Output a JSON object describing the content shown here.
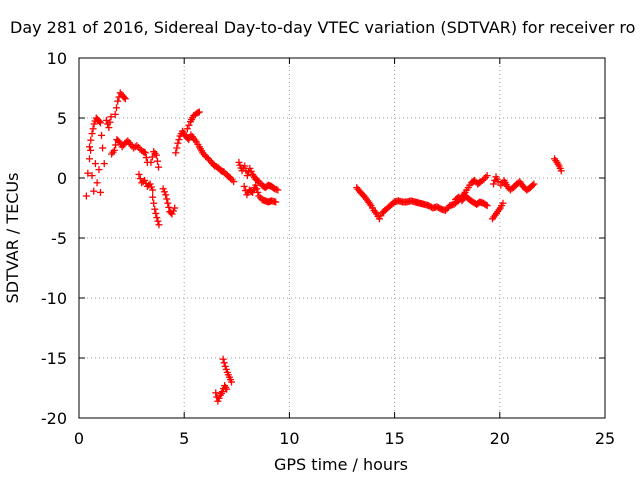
{
  "chart_data": {
    "type": "scatter",
    "title": "Day 281 of 2016, Sidereal Day-to-day VTEC variation (SDTVAR) for receiver ro",
    "xlabel": "GPS time / hours",
    "ylabel": "SDTVAR / TECUs",
    "xlim": [
      0,
      25
    ],
    "ylim": [
      -20,
      10
    ],
    "xticks": [
      0,
      5,
      10,
      15,
      20,
      25
    ],
    "yticks": [
      10,
      5,
      0,
      -5,
      -10,
      -15,
      -20
    ],
    "grid": true,
    "marker": "+",
    "color": "#ff0000",
    "series": [
      {
        "name": "SDTVAR",
        "segments": [
          [
            [
              0.35,
              -1.5
            ],
            [
              0.42,
              0.4
            ],
            [
              0.5,
              1.6
            ],
            [
              0.55,
              2.3
            ],
            [
              0.62,
              0.2
            ],
            [
              0.7,
              -1.1
            ],
            [
              0.78,
              1.2
            ],
            [
              0.86,
              -0.4
            ],
            [
              0.95,
              0.7
            ],
            [
              1.02,
              -1.2
            ]
          ],
          [
            [
              0.5,
              2.6
            ],
            [
              0.62,
              3.7
            ],
            [
              0.72,
              4.5
            ],
            [
              0.82,
              5.0
            ],
            [
              0.92,
              4.8
            ],
            [
              1.02,
              4.6
            ],
            [
              1.12,
              2.5
            ],
            [
              1.2,
              1.2
            ]
          ],
          [
            [
              1.3,
              4.8
            ],
            [
              1.42,
              4.2
            ],
            [
              1.52,
              5.1
            ]
          ],
          [
            [
              1.55,
              2.0
            ],
            [
              1.68,
              2.3
            ],
            [
              1.8,
              3.2
            ],
            [
              1.92,
              3.0
            ],
            [
              2.05,
              2.6
            ],
            [
              2.18,
              2.9
            ],
            [
              2.32,
              3.1
            ],
            [
              2.45,
              2.8
            ],
            [
              2.6,
              2.5
            ],
            [
              2.75,
              2.7
            ],
            [
              2.9,
              2.4
            ],
            [
              3.05,
              2.2
            ],
            [
              3.15,
              2.1
            ],
            [
              3.25,
              1.3
            ]
          ],
          [
            [
              1.72,
              5.3
            ],
            [
              1.84,
              6.4
            ],
            [
              1.96,
              7.1
            ],
            [
              2.1,
              6.8
            ],
            [
              2.2,
              6.6
            ]
          ],
          [
            [
              2.85,
              0.3
            ],
            [
              2.98,
              -0.4
            ],
            [
              3.12,
              -0.2
            ],
            [
              3.25,
              -0.7
            ],
            [
              3.38,
              -0.5
            ],
            [
              3.5,
              -1.0
            ]
          ],
          [
            [
              3.42,
              1.3
            ],
            [
              3.55,
              2.2
            ],
            [
              3.68,
              1.9
            ],
            [
              3.78,
              0.9
            ]
          ],
          [
            [
              3.5,
              -1.6
            ],
            [
              3.6,
              -2.6
            ],
            [
              3.7,
              -3.3
            ],
            [
              3.8,
              -3.9
            ]
          ],
          [
            [
              4.0,
              -0.9
            ],
            [
              4.12,
              -1.4
            ],
            [
              4.22,
              -2.1
            ],
            [
              4.32,
              -2.8
            ],
            [
              4.42,
              -3.0
            ],
            [
              4.55,
              -2.5
            ]
          ],
          [
            [
              4.6,
              2.1
            ],
            [
              4.7,
              2.9
            ],
            [
              4.8,
              3.5
            ],
            [
              4.92,
              3.9
            ],
            [
              5.02,
              3.6
            ],
            [
              5.12,
              3.4
            ],
            [
              5.22,
              3.2
            ],
            [
              5.32,
              3.6
            ],
            [
              5.45,
              3.3
            ],
            [
              5.58,
              3.0
            ],
            [
              5.72,
              2.6
            ],
            [
              5.88,
              2.1
            ],
            [
              6.02,
              1.8
            ],
            [
              6.15,
              1.6
            ],
            [
              6.3,
              1.3
            ],
            [
              6.45,
              1.0
            ],
            [
              6.6,
              0.9
            ],
            [
              6.75,
              0.6
            ],
            [
              6.9,
              0.5
            ],
            [
              7.05,
              0.2
            ],
            [
              7.2,
              0.0
            ],
            [
              7.35,
              -0.3
            ]
          ],
          [
            [
              5.15,
              4.1
            ],
            [
              5.3,
              4.7
            ],
            [
              5.45,
              5.2
            ],
            [
              5.6,
              5.4
            ],
            [
              5.72,
              5.5
            ]
          ],
          [
            [
              6.5,
              -17.9
            ],
            [
              6.6,
              -18.6
            ],
            [
              6.72,
              -18.1
            ],
            [
              6.82,
              -17.8
            ],
            [
              6.92,
              -17.3
            ],
            [
              7.02,
              -17.6
            ]
          ],
          [
            [
              6.85,
              -15.1
            ],
            [
              6.95,
              -15.7
            ],
            [
              7.05,
              -16.2
            ],
            [
              7.15,
              -16.6
            ],
            [
              7.25,
              -17.0
            ]
          ],
          [
            [
              7.6,
              1.3
            ],
            [
              7.75,
              0.6
            ],
            [
              7.88,
              1.0
            ],
            [
              8.0,
              0.2
            ],
            [
              8.12,
              0.8
            ],
            [
              8.25,
              0.3
            ],
            [
              8.4,
              -0.1
            ],
            [
              8.55,
              -0.3
            ],
            [
              8.7,
              -0.6
            ],
            [
              8.85,
              -0.8
            ],
            [
              9.0,
              -0.6
            ],
            [
              9.15,
              -0.7
            ],
            [
              9.3,
              -0.9
            ],
            [
              9.45,
              -1.0
            ]
          ],
          [
            [
              7.85,
              -0.7
            ],
            [
              7.98,
              -1.4
            ],
            [
              8.1,
              -1.0
            ],
            [
              8.25,
              -1.2
            ],
            [
              8.4,
              -0.6
            ],
            [
              8.55,
              -1.5
            ],
            [
              8.7,
              -1.8
            ],
            [
              8.85,
              -1.9
            ],
            [
              9.0,
              -2.0
            ],
            [
              9.15,
              -1.9
            ],
            [
              9.35,
              -2.0
            ]
          ],
          [
            [
              13.2,
              -0.8
            ],
            [
              13.38,
              -1.2
            ],
            [
              13.55,
              -1.5
            ],
            [
              13.72,
              -1.9
            ],
            [
              13.88,
              -2.3
            ],
            [
              14.02,
              -2.7
            ],
            [
              14.15,
              -3.0
            ],
            [
              14.28,
              -3.4
            ],
            [
              14.42,
              -2.9
            ],
            [
              14.6,
              -2.6
            ],
            [
              14.8,
              -2.3
            ],
            [
              14.98,
              -2.0
            ],
            [
              15.18,
              -1.9
            ],
            [
              15.38,
              -2.0
            ],
            [
              15.58,
              -2.0
            ],
            [
              15.78,
              -1.9
            ],
            [
              15.98,
              -2.0
            ],
            [
              16.2,
              -2.1
            ],
            [
              16.42,
              -2.2
            ],
            [
              16.62,
              -2.3
            ],
            [
              16.82,
              -2.5
            ],
            [
              17.02,
              -2.4
            ],
            [
              17.22,
              -2.6
            ],
            [
              17.42,
              -2.7
            ],
            [
              17.62,
              -2.3
            ],
            [
              17.82,
              -2.2
            ],
            [
              18.02,
              -1.9
            ],
            [
              18.2,
              -1.6
            ],
            [
              18.35,
              -1.2
            ],
            [
              18.5,
              -0.8
            ],
            [
              18.65,
              -0.4
            ],
            [
              18.8,
              -0.2
            ],
            [
              18.95,
              -0.5
            ],
            [
              19.1,
              -0.3
            ],
            [
              19.25,
              -0.1
            ],
            [
              19.4,
              0.2
            ]
          ],
          [
            [
              17.9,
              -1.8
            ],
            [
              18.05,
              -1.6
            ],
            [
              18.2,
              -1.9
            ],
            [
              18.38,
              -1.5
            ],
            [
              18.55,
              -1.8
            ],
            [
              18.72,
              -2.0
            ],
            [
              18.9,
              -2.2
            ],
            [
              19.05,
              -2.0
            ],
            [
              19.22,
              -2.1
            ],
            [
              19.4,
              -2.3
            ]
          ],
          [
            [
              19.65,
              -3.4
            ],
            [
              19.78,
              -3.1
            ],
            [
              19.9,
              -2.8
            ],
            [
              20.02,
              -2.5
            ],
            [
              20.15,
              -2.1
            ]
          ],
          [
            [
              20.05,
              -0.6
            ],
            [
              20.2,
              -0.2
            ],
            [
              20.35,
              -0.7
            ],
            [
              20.5,
              -1.0
            ],
            [
              20.65,
              -0.8
            ],
            [
              20.8,
              -0.5
            ],
            [
              20.95,
              -0.3
            ],
            [
              21.1,
              -0.7
            ],
            [
              21.28,
              -1.0
            ],
            [
              21.45,
              -0.8
            ],
            [
              21.62,
              -0.5
            ]
          ],
          [
            [
              19.7,
              -0.5
            ],
            [
              19.82,
              0.1
            ],
            [
              19.92,
              -0.3
            ]
          ],
          [
            [
              22.6,
              1.6
            ],
            [
              22.72,
              1.3
            ],
            [
              22.82,
              1.0
            ],
            [
              22.92,
              0.6
            ]
          ]
        ]
      }
    ]
  }
}
